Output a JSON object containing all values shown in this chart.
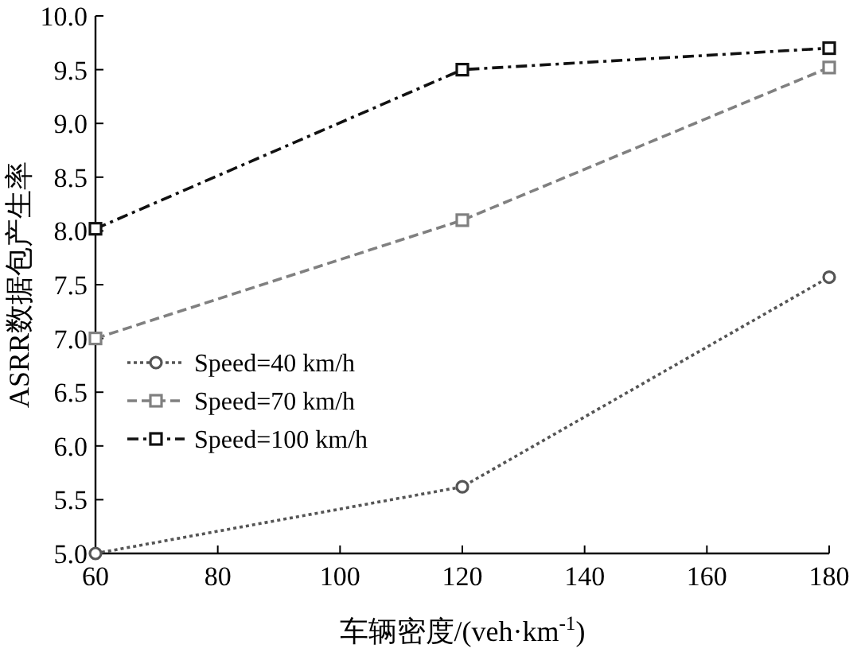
{
  "chart_data": {
    "type": "line",
    "xlabel": "车辆密度/(veh·km$^{-1}$)",
    "ylabel": "ASRR数据包产生率",
    "x": [
      60,
      120,
      180
    ],
    "xlim": [
      60,
      180
    ],
    "xticks": [
      60,
      80,
      100,
      120,
      140,
      160,
      180
    ],
    "ylim": [
      5,
      10
    ],
    "yticks": [
      {
        "value": 5,
        "label": "5.0"
      },
      {
        "value": 5.5,
        "label": "5.5"
      },
      {
        "value": 6,
        "label": "6.0"
      },
      {
        "value": 6.5,
        "label": "6.5"
      },
      {
        "value": 7,
        "label": "7.0"
      },
      {
        "value": 7.5,
        "label": "7.5"
      },
      {
        "value": 8,
        "label": "8.0"
      },
      {
        "value": 8.5,
        "label": "8.5"
      },
      {
        "value": 9,
        "label": "9.0"
      },
      {
        "value": 9.5,
        "label": "9.5"
      },
      {
        "value": 10,
        "label": "10.0"
      }
    ],
    "legend": "left",
    "grid": false,
    "series": [
      {
        "name": "Speed=40 km/h",
        "color": "#555555",
        "values": [
          5.0,
          5.62,
          7.57
        ],
        "marker": "circle",
        "line_style": "dotted"
      },
      {
        "name": "Speed=70 km/h",
        "color": "#808080",
        "values": [
          7.0,
          8.1,
          9.52
        ],
        "marker": "square",
        "line_style": "dashed"
      },
      {
        "name": "Speed=100 km/h",
        "color": "#111111",
        "values": [
          8.02,
          9.5,
          9.7
        ],
        "marker": "square",
        "line_style": "dashdot"
      }
    ]
  }
}
